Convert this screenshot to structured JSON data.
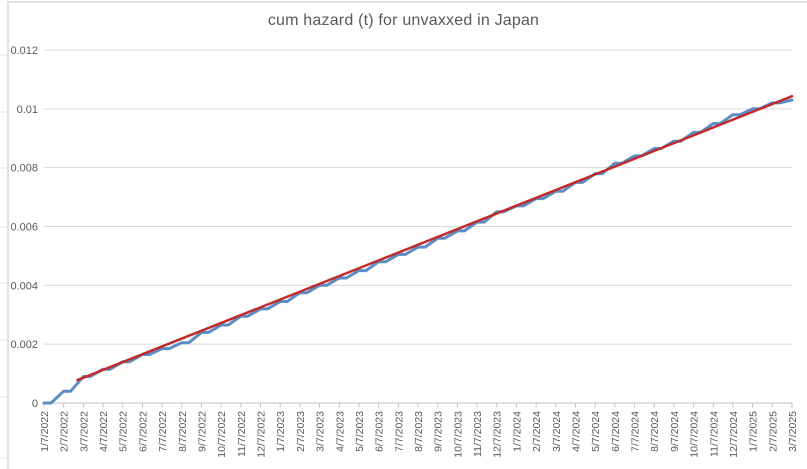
{
  "window": {
    "background": "#FFFFFF",
    "chart_border_color": "#D9D9D9",
    "sheet_gridline_color": "#E3E3E3"
  },
  "chart_data": {
    "type": "line",
    "title": "cum hazard (t) for unvaxxed in Japan",
    "xlabel": "",
    "ylabel": "",
    "ylim": [
      0,
      0.012
    ],
    "grid": "horizontal",
    "legend_position": "none",
    "y_tick_labels": [
      "0",
      "0.002",
      "0.004",
      "0.006",
      "0.008",
      "0.01",
      "0.012"
    ],
    "x_labels": [
      "1/7/2022",
      "2/7/2022",
      "3/7/2022",
      "4/7/2022",
      "5/7/2022",
      "6/7/2022",
      "7/7/2022",
      "8/7/2022",
      "9/7/2022",
      "10/7/2022",
      "11/7/2022",
      "12/7/2022",
      "1/7/2023",
      "2/7/2023",
      "3/7/2023",
      "4/7/2023",
      "5/7/2023",
      "6/7/2023",
      "7/7/2023",
      "8/7/2023",
      "9/7/2023",
      "10/7/2023",
      "11/7/2023",
      "12/7/2023",
      "1/7/2024",
      "2/7/2024",
      "3/7/2024",
      "4/7/2024",
      "5/7/2024",
      "6/7/2024",
      "7/7/2024",
      "8/7/2024",
      "9/7/2024",
      "10/7/2024",
      "11/7/2024",
      "12/7/2024",
      "1/7/2025",
      "2/7/2025",
      "3/7/2025"
    ],
    "series": [
      {
        "name": "cumulative hazard",
        "kind": "stepped-line",
        "color": "#5B8DC4",
        "values": [
          0,
          0.0004,
          0.0009,
          0.00115,
          0.0014,
          0.00165,
          0.00185,
          0.00205,
          0.0024,
          0.00265,
          0.00295,
          0.0032,
          0.00345,
          0.00375,
          0.004,
          0.00425,
          0.0045,
          0.0048,
          0.00505,
          0.0053,
          0.0056,
          0.00585,
          0.00615,
          0.0065,
          0.0067,
          0.00695,
          0.0072,
          0.0075,
          0.0078,
          0.00815,
          0.0084,
          0.00865,
          0.0089,
          0.0092,
          0.0095,
          0.0098,
          0.01,
          0.0102,
          0.0103
        ]
      },
      {
        "name": "linear trendline",
        "kind": "trendline",
        "color": "#C02B2B",
        "start_index": 1.7,
        "start_value": 0.00078,
        "end_index": 38,
        "end_value": 0.01043
      }
    ]
  },
  "style": {
    "title_color": "#595959",
    "axis_label_color": "#595959",
    "gridline_color": "#D9D9D9",
    "axis_line_color": "#C0C0C0"
  }
}
